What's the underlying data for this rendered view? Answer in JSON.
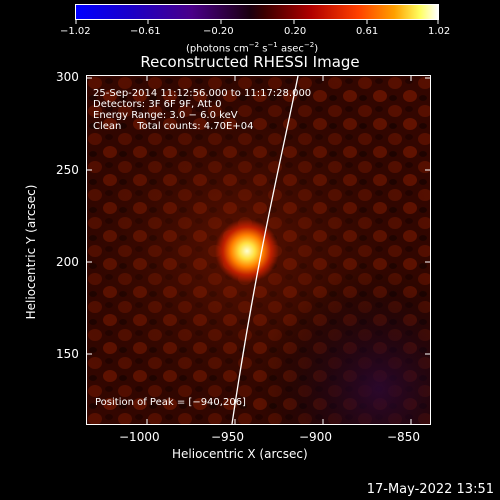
{
  "colorbar": {
    "ticks": [
      "−1.02",
      "−0.61",
      "−0.20",
      "0.20",
      "0.61",
      "1.02"
    ],
    "units_prefix": "(photons cm",
    "units_sup1": "−2",
    "units_mid1": " s",
    "units_sup2": "−1",
    "units_mid2": " asec",
    "units_sup3": "−2",
    "units_suffix": ")"
  },
  "title": "Reconstructed RHESSI Image",
  "info": {
    "time_range": "25-Sep-2014 11:12:56.000 to 11:17:28.000",
    "detectors": "Detectors: 3F 6F 9F, Att 0",
    "energy": "Energy Range: 3.0 − 6.0 keV",
    "clean": "Clean     Total counts: 4.70E+04"
  },
  "peak_label": "Position of Peak = [−940,206]",
  "axes": {
    "xlabel": "Heliocentric X (arcsec)",
    "ylabel": "Heliocentric Y (arcsec)",
    "xticks": [
      "−1000",
      "−950",
      "−900",
      "−850"
    ],
    "yticks": [
      "300",
      "250",
      "200",
      "150"
    ]
  },
  "timestamp": "17-May-2022 13:51",
  "colors": {
    "background": "#000000",
    "limb": "#ffffff",
    "source_core": "#ffff80",
    "source_glow": "#ff8c00",
    "map_base": "#2a0500"
  }
}
